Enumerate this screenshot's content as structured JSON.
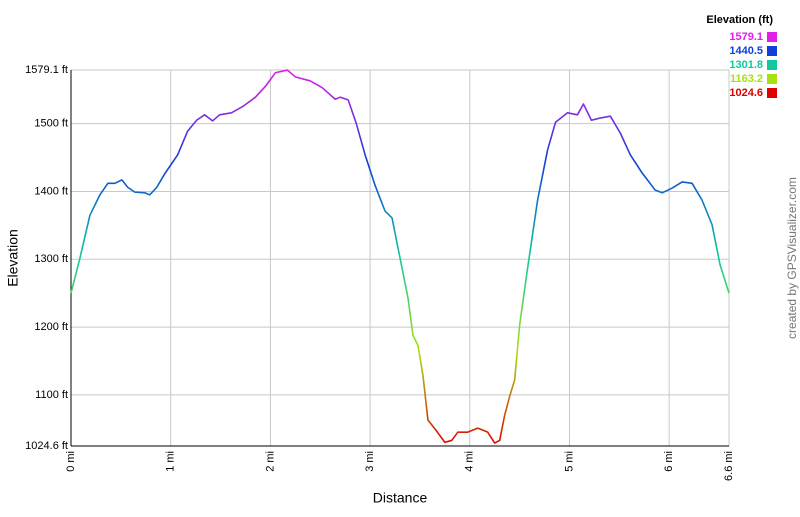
{
  "chart_data": {
    "type": "line",
    "x_label": "Distance",
    "y_label": "Elevation",
    "credit": "created by GPSVisualizer.com",
    "color_scale": {
      "title": "Elevation (ft)",
      "levels": [
        {
          "value": 1579.1,
          "color": "#e020e8"
        },
        {
          "value": 1440.5,
          "color": "#1040d8"
        },
        {
          "value": 1301.8,
          "color": "#10c8a0"
        },
        {
          "value": 1163.2,
          "color": "#a8e010"
        },
        {
          "value": 1024.6,
          "color": "#e00000"
        }
      ]
    },
    "x": [
      0,
      0.09,
      0.19,
      0.29,
      0.37,
      0.44,
      0.51,
      0.57,
      0.64,
      0.74,
      0.79,
      0.86,
      0.94,
      1.07,
      1.17,
      1.26,
      1.34,
      1.42,
      1.49,
      1.61,
      1.73,
      1.85,
      1.95,
      2.05,
      2.17,
      2.25,
      2.4,
      2.52,
      2.65,
      2.7,
      2.78,
      2.86,
      2.95,
      3.05,
      3.15,
      3.22,
      3.3,
      3.38,
      3.43,
      3.48,
      3.53,
      3.58,
      3.66,
      3.75,
      3.82,
      3.88,
      3.98,
      4.08,
      4.18,
      4.25,
      4.3,
      4.35,
      4.4,
      4.45,
      4.5,
      4.58,
      4.68,
      4.78,
      4.86,
      4.98,
      5.08,
      5.14,
      5.22,
      5.3,
      5.41,
      5.51,
      5.61,
      5.73,
      5.86,
      5.93,
      6.03,
      6.13,
      6.23,
      6.33,
      6.43,
      6.51,
      6.6
    ],
    "values": [
      1250,
      1302,
      1365,
      1395,
      1412,
      1412,
      1417,
      1406,
      1399,
      1398,
      1395,
      1406,
      1426,
      1454,
      1489,
      1505,
      1513,
      1504,
      1513,
      1516,
      1526,
      1539,
      1555,
      1575,
      1579,
      1569,
      1563,
      1553,
      1536,
      1539,
      1535,
      1501,
      1454,
      1409,
      1371,
      1361,
      1302,
      1243,
      1188,
      1173,
      1129,
      1063,
      1048,
      1030,
      1033,
      1045,
      1045,
      1051,
      1045,
      1029,
      1033,
      1070,
      1098,
      1122,
      1203,
      1287,
      1387,
      1461,
      1502,
      1516,
      1513,
      1529,
      1505,
      1508,
      1511,
      1486,
      1454,
      1427,
      1402,
      1398,
      1405,
      1414,
      1412,
      1387,
      1351,
      1292,
      1250
    ],
    "xlim": [
      0,
      6.6
    ],
    "xticks": [
      {
        "value": 0,
        "label": "0 mi"
      },
      {
        "value": 1,
        "label": "1 mi"
      },
      {
        "value": 2,
        "label": "2 mi"
      },
      {
        "value": 3,
        "label": "3 mi"
      },
      {
        "value": 4,
        "label": "4 mi"
      },
      {
        "value": 5,
        "label": "5 mi"
      },
      {
        "value": 6,
        "label": "6 mi"
      },
      {
        "value": 6.6,
        "label": "6.6 mi"
      }
    ],
    "ylim": [
      1024.6,
      1579.1
    ],
    "yticks": [
      {
        "value": 1024.6,
        "label": "1024.6 ft"
      },
      {
        "value": 1100,
        "label": "1100 ft"
      },
      {
        "value": 1200,
        "label": "1200 ft"
      },
      {
        "value": 1300,
        "label": "1300 ft"
      },
      {
        "value": 1400,
        "label": "1400 ft"
      },
      {
        "value": 1500,
        "label": "1500 ft"
      },
      {
        "value": 1579.1,
        "label": "1579.1 ft"
      }
    ],
    "grid": true
  }
}
